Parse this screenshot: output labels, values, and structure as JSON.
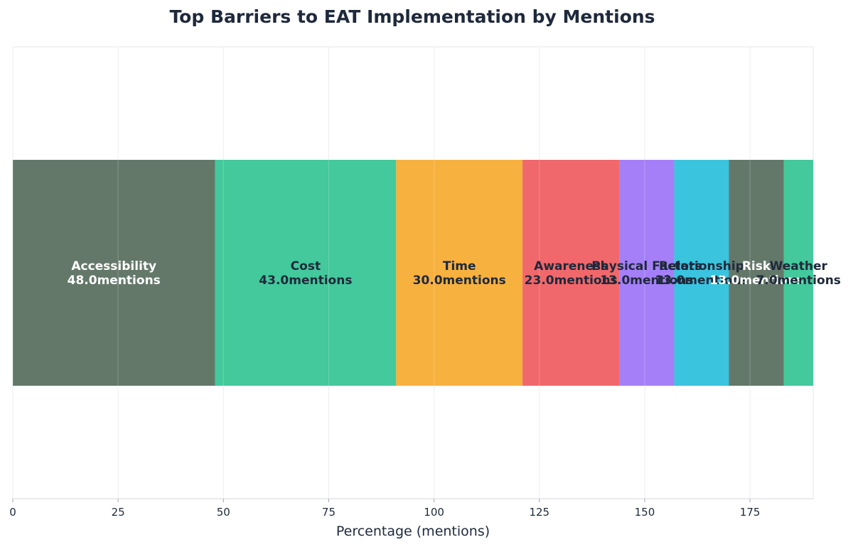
{
  "chart_data": {
    "type": "bar",
    "orientation": "horizontal-stacked",
    "title": "Top Barriers to EAT Implementation by Mentions",
    "xlabel": "Percentage (mentions)",
    "ylabel": "",
    "xlim": [
      0,
      190
    ],
    "xticks": [
      0,
      25,
      50,
      75,
      100,
      125,
      150,
      175
    ],
    "grid": true,
    "legend": "none",
    "value_suffix": "mentions",
    "categories": [
      "Accessibility",
      "Cost",
      "Time",
      "Awareness",
      "Physical Factors",
      "Relationship",
      "Risk",
      "Weather"
    ],
    "values": [
      48.0,
      43.0,
      30.0,
      23.0,
      13.0,
      13.0,
      13.0,
      7.0
    ],
    "colors": [
      "#64786a",
      "#43c99b",
      "#f7b13f",
      "#f0686b",
      "#a57ff7",
      "#3bc4de",
      "#64786a",
      "#43c99b"
    ],
    "label_colors": [
      "#ffffff",
      "#1e293b",
      "#1e293b",
      "#1e293b",
      "#1e293b",
      "#1e293b",
      "#ffffff",
      "#1e293b"
    ]
  }
}
